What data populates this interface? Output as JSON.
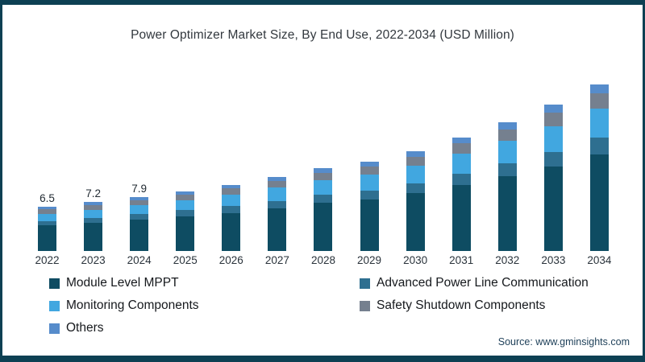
{
  "page": {
    "background": "#ffffff",
    "border_color": "#0d4053"
  },
  "chart_data": {
    "type": "bar",
    "stacked": true,
    "title": "Power Optimizer Market Size, By End Use, 2022-2034 (USD Million)",
    "unit": "USD Million",
    "categories": [
      "2022",
      "2023",
      "2024",
      "2025",
      "2026",
      "2027",
      "2028",
      "2029",
      "2030",
      "2031",
      "2032",
      "2033",
      "2034"
    ],
    "series": [
      {
        "name": "Module Level MPPT",
        "color": "#0e4c62",
        "values": [
          3.8,
          4.2,
          4.6,
          5.1,
          5.6,
          6.3,
          7.1,
          7.6,
          8.5,
          9.7,
          11.0,
          12.4,
          14.2
        ]
      },
      {
        "name": "Advanced Power Line Communication",
        "color": "#2e6f90",
        "values": [
          0.6,
          0.7,
          0.8,
          0.9,
          1.0,
          1.1,
          1.2,
          1.3,
          1.5,
          1.7,
          1.9,
          2.2,
          2.5
        ]
      },
      {
        "name": "Monitoring Components",
        "color": "#41a7e0",
        "values": [
          1.1,
          1.2,
          1.3,
          1.5,
          1.7,
          1.9,
          2.1,
          2.3,
          2.6,
          2.9,
          3.3,
          3.8,
          4.3
        ]
      },
      {
        "name": "Safety Shutdown Components",
        "color": "#75808f",
        "values": [
          0.6,
          0.7,
          0.8,
          0.8,
          0.9,
          1.0,
          1.1,
          1.2,
          1.3,
          1.5,
          1.7,
          1.9,
          2.2
        ]
      },
      {
        "name": "Others",
        "color": "#568ccb",
        "values": [
          0.4,
          0.4,
          0.4,
          0.5,
          0.5,
          0.6,
          0.7,
          0.7,
          0.8,
          0.9,
          1.0,
          1.2,
          1.3
        ]
      }
    ],
    "totals": [
      6.5,
      7.2,
      7.9,
      8.8,
      9.7,
      10.9,
      12.2,
      13.1,
      14.7,
      16.7,
      18.9,
      21.5,
      24.5
    ],
    "data_labels": {
      "2022": "6.5",
      "2023": "7.2",
      "2024": "7.9"
    },
    "ylim": [
      0,
      26
    ],
    "grid": false,
    "axis_line": false,
    "legend_position": "bottom"
  },
  "source": {
    "label": "Source: www.gminsights.com"
  }
}
